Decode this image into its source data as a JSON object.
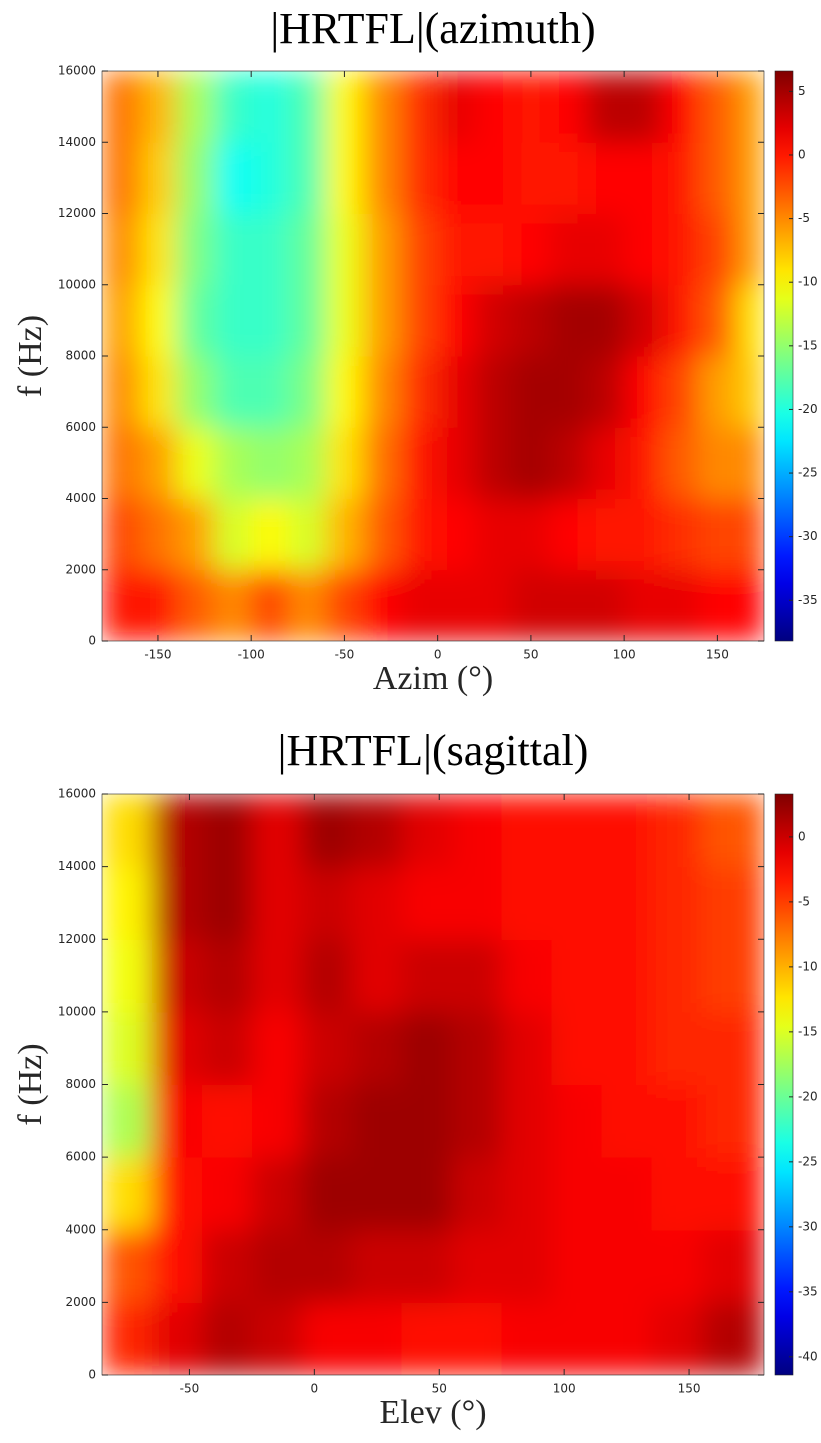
{
  "chart_data": [
    {
      "type": "heatmap",
      "title": "|HRTFL|(azimuth)",
      "x_label": "Azim (°)",
      "y_label": "f (Hz)",
      "colormap": "jet",
      "x": [
        -170,
        -150,
        -130,
        -110,
        -90,
        -70,
        -50,
        -30,
        -10,
        10,
        30,
        50,
        70,
        90,
        110,
        130,
        150,
        170
      ],
      "y": [
        1000,
        3000,
        5000,
        7000,
        9000,
        11000,
        13000,
        15000
      ],
      "z": [
        [
          0,
          0,
          -3,
          -5,
          -2,
          -5,
          -2,
          1,
          2,
          2,
          2,
          3,
          3,
          3,
          2,
          2,
          1,
          1
        ],
        [
          -2,
          -4,
          -6,
          -12,
          -10,
          -12,
          -7,
          -3,
          0,
          1,
          2,
          2,
          1,
          0,
          0,
          -1,
          -2,
          -2
        ],
        [
          -4,
          -6,
          -11,
          -14,
          -15,
          -14,
          -9,
          -4,
          0,
          2,
          4,
          5,
          4,
          2,
          0,
          -3,
          -5,
          -5
        ],
        [
          -5,
          -9,
          -15,
          -18,
          -18,
          -16,
          -10,
          -5,
          -1,
          2,
          4,
          5,
          5,
          4,
          1,
          -2,
          -6,
          -8
        ],
        [
          -6,
          -10,
          -17,
          -19,
          -19,
          -17,
          -11,
          -6,
          -2,
          1,
          3,
          4,
          5,
          5,
          3,
          0,
          -3,
          -9
        ],
        [
          -5,
          -9,
          -16,
          -19,
          -19,
          -17,
          -11,
          -6,
          -2,
          0,
          0,
          1,
          2,
          2,
          1,
          0,
          -2,
          -6
        ],
        [
          -4,
          -8,
          -15,
          -21,
          -20,
          -18,
          -10,
          -5,
          -1,
          1,
          1,
          0,
          0,
          1,
          1,
          0,
          -3,
          -6
        ],
        [
          -4,
          -7,
          -14,
          -19,
          -20,
          -18,
          -10,
          -5,
          -1,
          2,
          1,
          0,
          1,
          4,
          4,
          1,
          -3,
          -6
        ]
      ],
      "xlim": [
        -180,
        175
      ],
      "xticks": [
        -150,
        -100,
        -50,
        0,
        50,
        100,
        150
      ],
      "ylim": [
        0,
        16000
      ],
      "yticks": [
        0,
        2000,
        4000,
        6000,
        8000,
        10000,
        12000,
        14000,
        16000
      ],
      "clim": [
        -38.2,
        6.6
      ],
      "cticks": [
        5,
        0,
        -5,
        -10,
        -15,
        -20,
        -25,
        -30,
        -35
      ]
    },
    {
      "type": "heatmap",
      "title": "|HRTFL|(sagittal)",
      "x_label": "Elev (°)",
      "y_label": "f (Hz)",
      "colormap": "jet",
      "x": [
        -75,
        -55,
        -35,
        -15,
        5,
        25,
        45,
        65,
        85,
        105,
        125,
        145,
        165
      ],
      "y": [
        1000,
        3000,
        5000,
        7000,
        9000,
        11000,
        13000,
        15000
      ],
      "z": [
        [
          -4,
          -1,
          1,
          0,
          -2,
          -2,
          -3,
          -3,
          -2,
          -2,
          -2,
          -1,
          1
        ],
        [
          -6,
          -3,
          0,
          1,
          1,
          0,
          0,
          -1,
          -1,
          -2,
          -2,
          -2,
          -1
        ],
        [
          -12,
          -3,
          -2,
          0,
          2,
          2,
          2,
          0,
          -1,
          -2,
          -2,
          -3,
          -3
        ],
        [
          -17,
          -2,
          -3,
          -2,
          1,
          2,
          2,
          1,
          -1,
          -2,
          -3,
          -3,
          -4
        ],
        [
          -15,
          -1,
          0,
          -2,
          0,
          1,
          2,
          1,
          -1,
          -3,
          -3,
          -4,
          -4
        ],
        [
          -14,
          0,
          1,
          -1,
          1,
          -1,
          0,
          0,
          -2,
          -3,
          -3,
          -4,
          -5
        ],
        [
          -13,
          1,
          2,
          -1,
          0,
          -1,
          -2,
          -2,
          -3,
          -3,
          -3,
          -4,
          -5
        ],
        [
          -12,
          1,
          2,
          -1,
          2,
          1,
          -1,
          -2,
          -3,
          -3,
          -3,
          -4,
          -6
        ]
      ],
      "xlim": [
        -85,
        180
      ],
      "xticks": [
        -50,
        0,
        50,
        100,
        150
      ],
      "ylim": [
        0,
        16000
      ],
      "yticks": [
        0,
        2000,
        4000,
        6000,
        8000,
        10000,
        12000,
        14000,
        16000
      ],
      "clim": [
        -41.4,
        3.3
      ],
      "cticks": [
        0,
        -5,
        -10,
        -15,
        -20,
        -25,
        -30,
        -35,
        -40
      ]
    }
  ]
}
